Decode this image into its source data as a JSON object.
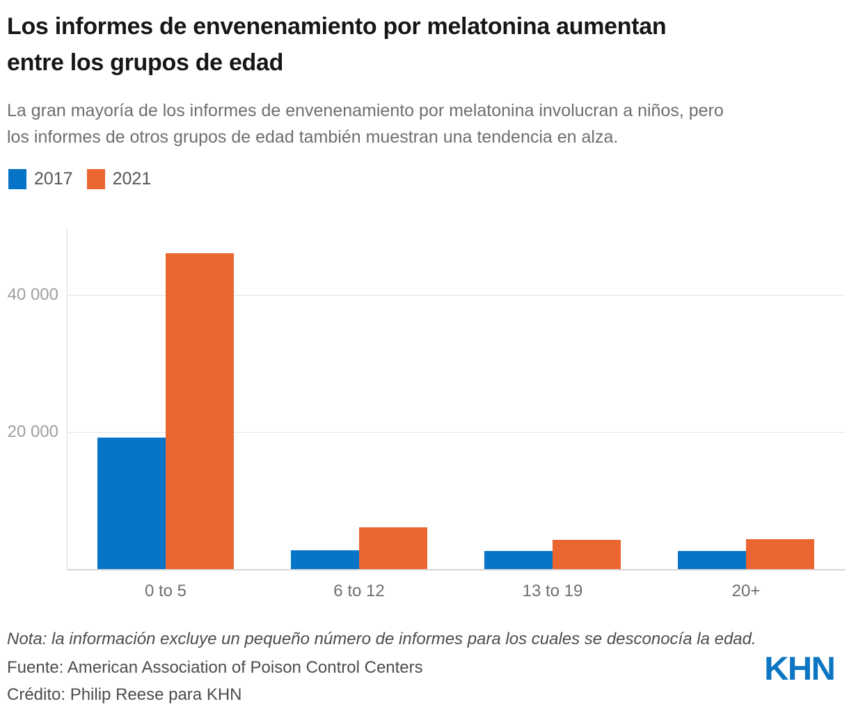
{
  "header": {
    "title_lines": [
      "Los informes de envenenamiento por melatonina aumentan",
      "entre los grupos de edad"
    ],
    "subtitle_lines": [
      "La gran mayoría de los informes de envenenamiento por melatonina involucran a niños, pero",
      "los informes de otros grupos de edad también muestran una tendencia en alza."
    ]
  },
  "legend": {
    "items": [
      {
        "label": "2017",
        "color": "#0774c8"
      },
      {
        "label": "2021",
        "color": "#eb6530"
      }
    ]
  },
  "chart_data": {
    "type": "bar",
    "categories": [
      "0 to 5",
      "6 to 12",
      "13 to 19",
      "20+"
    ],
    "series": [
      {
        "name": "2017",
        "color": "#0774c8",
        "values": [
          19200,
          2750,
          2650,
          2650
        ]
      },
      {
        "name": "2021",
        "color": "#eb6530",
        "values": [
          46100,
          6100,
          4300,
          4350
        ]
      }
    ],
    "yticks": [
      {
        "value": 20000,
        "label": "20 000"
      },
      {
        "value": 40000,
        "label": "40 000"
      }
    ],
    "ylim": [
      0,
      50000
    ],
    "grid": "horizontal",
    "legend_position": "top-left"
  },
  "footer": {
    "note": "Nota: la información excluye un pequeño número de informes para los cuales se desconocía la edad.",
    "source": "Fuente: American Association of Poison Control Centers",
    "credit": "Crédito: Philip Reese para KHN",
    "logo": "KHN"
  },
  "colors": {
    "series_2017": "#0774c8",
    "series_2021": "#eb6530",
    "logo_blue": "#0d76c2",
    "gridline": "#e4e4e4",
    "axis_text": "#9e9e9e"
  }
}
